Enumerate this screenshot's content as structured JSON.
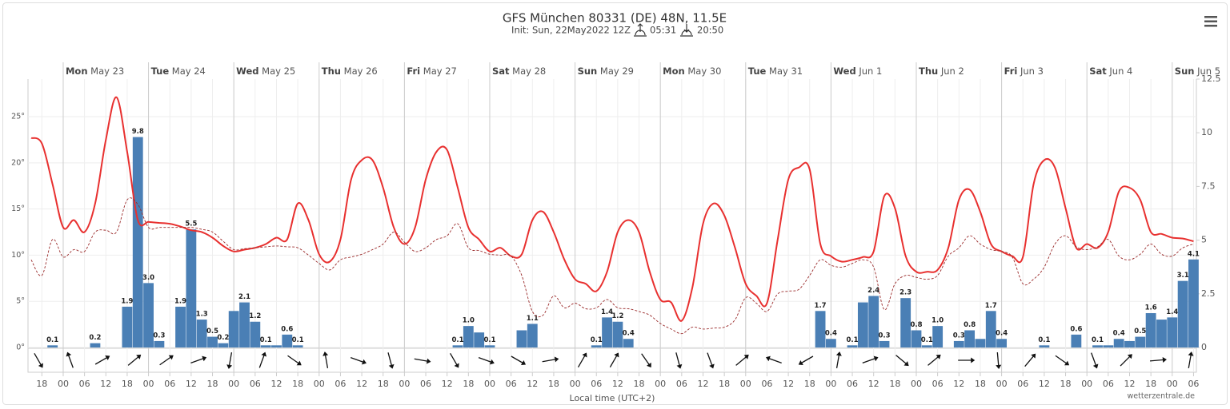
{
  "chart_data": {
    "type": "line",
    "title": "GFS München 80331 (DE) 48N, 11.5E",
    "subtitle": "Init: Sun, 22May2022 12Z",
    "sunrise": "05:31",
    "sunset": "20:50",
    "x_label": "Local time (UTC+2)",
    "credit": "wetterzentrale.de",
    "x": [
      -9,
      -6,
      -3,
      0,
      3,
      6,
      9,
      12,
      15,
      18,
      21,
      24,
      27,
      30,
      33,
      36,
      39,
      42,
      45,
      48,
      51,
      54,
      57,
      60,
      63,
      66,
      69,
      72,
      75,
      78,
      81,
      84,
      87,
      90,
      93,
      96,
      99,
      102,
      105,
      108,
      111,
      114,
      117,
      120,
      123,
      126,
      129,
      132,
      135,
      138,
      141,
      144,
      147,
      150,
      153,
      156,
      159,
      162,
      165,
      168,
      171,
      174,
      177,
      180,
      183,
      186,
      189,
      192,
      195,
      198,
      201,
      204,
      207,
      210,
      213,
      216,
      219,
      222,
      225,
      228,
      231,
      234,
      237,
      240,
      243,
      246,
      249,
      252,
      255,
      258,
      261,
      264,
      267,
      270,
      273,
      276,
      279,
      282,
      285,
      288,
      291,
      294,
      297,
      300,
      303,
      306,
      309,
      312,
      315,
      318
    ],
    "xlim": [
      -9.9,
      318.8
    ],
    "xticks": [
      {
        "value": -6,
        "label": "18"
      },
      {
        "value": 0,
        "label": "00"
      },
      {
        "value": 6,
        "label": "06"
      },
      {
        "value": 12,
        "label": "12"
      },
      {
        "value": 18,
        "label": "18"
      },
      {
        "value": 24,
        "label": "00"
      },
      {
        "value": 30,
        "label": "06"
      },
      {
        "value": 36,
        "label": "12"
      },
      {
        "value": 42,
        "label": "18"
      },
      {
        "value": 48,
        "label": "00"
      },
      {
        "value": 54,
        "label": "06"
      },
      {
        "value": 60,
        "label": "12"
      },
      {
        "value": 66,
        "label": "18"
      },
      {
        "value": 72,
        "label": "00"
      },
      {
        "value": 78,
        "label": "06"
      },
      {
        "value": 84,
        "label": "12"
      },
      {
        "value": 90,
        "label": "18"
      },
      {
        "value": 96,
        "label": "00"
      },
      {
        "value": 102,
        "label": "06"
      },
      {
        "value": 108,
        "label": "12"
      },
      {
        "value": 114,
        "label": "18"
      },
      {
        "value": 120,
        "label": "00"
      },
      {
        "value": 126,
        "label": "06"
      },
      {
        "value": 132,
        "label": "12"
      },
      {
        "value": 138,
        "label": "18"
      },
      {
        "value": 144,
        "label": "00"
      },
      {
        "value": 150,
        "label": "06"
      },
      {
        "value": 156,
        "label": "12"
      },
      {
        "value": 162,
        "label": "18"
      },
      {
        "value": 168,
        "label": "00"
      },
      {
        "value": 174,
        "label": "06"
      },
      {
        "value": 180,
        "label": "12"
      },
      {
        "value": 186,
        "label": "18"
      },
      {
        "value": 192,
        "label": "00"
      },
      {
        "value": 198,
        "label": "06"
      },
      {
        "value": 204,
        "label": "12"
      },
      {
        "value": 210,
        "label": "18"
      },
      {
        "value": 216,
        "label": "00"
      },
      {
        "value": 222,
        "label": "06"
      },
      {
        "value": 228,
        "label": "12"
      },
      {
        "value": 234,
        "label": "18"
      },
      {
        "value": 240,
        "label": "00"
      },
      {
        "value": 246,
        "label": "06"
      },
      {
        "value": 252,
        "label": "12"
      },
      {
        "value": 258,
        "label": "18"
      },
      {
        "value": 264,
        "label": "00"
      },
      {
        "value": 270,
        "label": "06"
      },
      {
        "value": 276,
        "label": "12"
      },
      {
        "value": 282,
        "label": "18"
      },
      {
        "value": 288,
        "label": "00"
      },
      {
        "value": 294,
        "label": "06"
      },
      {
        "value": 300,
        "label": "12"
      },
      {
        "value": 306,
        "label": "18"
      },
      {
        "value": 312,
        "label": "00"
      },
      {
        "value": 318,
        "label": "06"
      }
    ],
    "days": [
      {
        "value": 0,
        "weekday": "Mon",
        "date": "May 23"
      },
      {
        "value": 24,
        "weekday": "Tue",
        "date": "May 24"
      },
      {
        "value": 48,
        "weekday": "Wed",
        "date": "May 25"
      },
      {
        "value": 72,
        "weekday": "Thu",
        "date": "May 26"
      },
      {
        "value": 96,
        "weekday": "Fri",
        "date": "May 27"
      },
      {
        "value": 120,
        "weekday": "Sat",
        "date": "May 28"
      },
      {
        "value": 144,
        "weekday": "Sun",
        "date": "May 29"
      },
      {
        "value": 168,
        "weekday": "Mon",
        "date": "May 30"
      },
      {
        "value": 192,
        "weekday": "Tue",
        "date": "May 31"
      },
      {
        "value": 216,
        "weekday": "Wed",
        "date": "Jun 1"
      },
      {
        "value": 240,
        "weekday": "Thu",
        "date": "Jun 2"
      },
      {
        "value": 264,
        "weekday": "Fri",
        "date": "Jun 3"
      },
      {
        "value": 288,
        "weekday": "Sat",
        "date": "Jun 4"
      },
      {
        "value": 312,
        "weekday": "Sun",
        "date": "Jun 5"
      }
    ],
    "ylim": [
      0,
      29.07
    ],
    "yticks": [
      {
        "value": 0,
        "label": "0°"
      },
      {
        "value": 5,
        "label": "5°"
      },
      {
        "value": 10,
        "label": "10°"
      },
      {
        "value": 15,
        "label": "15°"
      },
      {
        "value": 20,
        "label": "20°"
      },
      {
        "value": 25,
        "label": "25°"
      }
    ],
    "y2lim": [
      0,
      12.5
    ],
    "y2ticks": [
      0,
      2.5,
      5,
      7.5,
      10,
      12.5
    ],
    "grid": true,
    "series": [
      {
        "type": "line",
        "color": "#e8302f",
        "dash": false,
        "values": [
          22.7,
          22.1,
          17.7,
          13.0,
          13.8,
          12.5,
          15.6,
          22.5,
          27.1,
          21.2,
          13.8,
          13.6,
          13.5,
          13.4,
          13.1,
          12.7,
          12.5,
          11.9,
          11.0,
          10.4,
          10.6,
          10.8,
          11.2,
          11.9,
          11.7,
          15.6,
          13.8,
          10.1,
          9.3,
          11.7,
          18.2,
          20.3,
          20.3,
          17.3,
          13.0,
          11.2,
          13.0,
          18.2,
          21.2,
          21.4,
          17.3,
          13.0,
          11.7,
          10.4,
          10.8,
          9.9,
          10.1,
          13.8,
          14.7,
          12.5,
          9.5,
          7.4,
          6.9,
          6.1,
          8.2,
          12.5,
          13.8,
          12.5,
          8.2,
          5.2,
          4.9,
          2.9,
          6.5,
          13.4,
          15.6,
          14.3,
          10.8,
          6.9,
          5.6,
          4.8,
          11.7,
          18.2,
          19.5,
          19.3,
          11.2,
          9.9,
          9.3,
          9.5,
          9.8,
          10.4,
          16.4,
          15.1,
          9.9,
          8.2,
          8.2,
          8.4,
          10.8,
          16.0,
          17.1,
          14.7,
          11.2,
          10.4,
          9.9,
          9.8,
          17.7,
          20.3,
          19.5,
          15.1,
          10.8,
          11.2,
          10.8,
          12.5,
          16.9,
          17.3,
          16.0,
          12.5,
          12.3,
          11.9,
          11.8,
          11.5
        ]
      },
      {
        "type": "line",
        "color": "#9a2a2a",
        "dash": true,
        "values": [
          9.5,
          7.8,
          11.7,
          9.8,
          10.6,
          10.4,
          12.5,
          12.7,
          12.5,
          16.0,
          15.5,
          13.0,
          13.0,
          13.0,
          13.0,
          13.0,
          12.8,
          12.5,
          11.5,
          10.6,
          10.7,
          10.8,
          10.9,
          11.0,
          10.9,
          10.8,
          10.0,
          9.1,
          8.4,
          9.5,
          9.8,
          10.1,
          10.6,
          11.2,
          12.5,
          11.4,
          10.4,
          10.8,
          11.7,
          12.1,
          13.4,
          10.8,
          10.5,
          10.1,
          10.0,
          9.9,
          7.8,
          3.9,
          3.5,
          5.6,
          4.3,
          4.8,
          4.2,
          4.3,
          5.2,
          4.3,
          4.2,
          3.9,
          3.5,
          2.6,
          2.0,
          1.5,
          2.2,
          2.0,
          2.1,
          2.2,
          3.0,
          5.4,
          4.8,
          3.9,
          5.8,
          6.1,
          6.3,
          7.8,
          9.5,
          8.9,
          8.7,
          9.1,
          9.5,
          8.7,
          4.1,
          6.9,
          7.8,
          7.6,
          7.4,
          7.8,
          9.9,
          10.8,
          12.1,
          11.2,
          10.6,
          10.4,
          9.8,
          6.9,
          7.4,
          8.7,
          11.2,
          12.1,
          10.9,
          10.6,
          10.9,
          11.7,
          9.9,
          9.5,
          10.1,
          11.2,
          10.1,
          9.9,
          10.8,
          11.2
        ]
      },
      {
        "type": "bar",
        "axis": "y2",
        "color": "#4a7fb5",
        "values": [
          0,
          0,
          0.1,
          0,
          0,
          0,
          0.2,
          0,
          0,
          1.9,
          9.8,
          3.0,
          0.3,
          0,
          1.9,
          5.5,
          1.3,
          0.5,
          0.2,
          1.7,
          2.1,
          1.2,
          0.1,
          0.1,
          0.6,
          0.1,
          0,
          0,
          0,
          0,
          0,
          0,
          0,
          0,
          0,
          0,
          0,
          0,
          0,
          0,
          0.1,
          1.0,
          0.7,
          0.1,
          0,
          0,
          0.8,
          1.1,
          0,
          0,
          0,
          0,
          0,
          0.1,
          1.4,
          1.2,
          0.4,
          0,
          0,
          0,
          0,
          0,
          0,
          0,
          0,
          0,
          0,
          0,
          0,
          0,
          0,
          0,
          0,
          0,
          1.7,
          0.4,
          0,
          0.1,
          2.1,
          2.4,
          0.3,
          0,
          2.3,
          0.8,
          0.1,
          1.0,
          0,
          0.3,
          0.8,
          0.4,
          1.7,
          0.4,
          0,
          0,
          0,
          0.1,
          0,
          0,
          0.6,
          0,
          0.1,
          0.1,
          0.4,
          0.3,
          0.5,
          1.6,
          1.3,
          1.4,
          3.1,
          4.1
        ],
        "value_labels": [
          null,
          null,
          "0.1",
          null,
          null,
          null,
          "0.2",
          null,
          null,
          "1.9",
          "9.8",
          "3.0",
          "0.3",
          null,
          "1.9",
          "5.5",
          "1.3",
          "0.5",
          "0.2",
          null,
          "2.1",
          "1.2",
          "0.1",
          null,
          "0.6",
          "0.1",
          null,
          null,
          null,
          null,
          null,
          null,
          null,
          null,
          null,
          null,
          null,
          null,
          null,
          null,
          "0.1",
          "1.0",
          null,
          "0.1",
          null,
          null,
          null,
          "1.1",
          null,
          null,
          null,
          null,
          null,
          "0.1",
          "1.4",
          "1.2",
          "0.4",
          null,
          null,
          null,
          null,
          null,
          null,
          null,
          null,
          null,
          null,
          null,
          null,
          null,
          null,
          null,
          null,
          null,
          "1.7",
          "0.4",
          null,
          "0.1",
          null,
          "2.4",
          "0.3",
          null,
          "2.3",
          "0.8",
          "0.1",
          "1.0",
          null,
          "0.3",
          "0.8",
          null,
          "1.7",
          "0.4",
          null,
          null,
          null,
          "0.1",
          null,
          null,
          "0.6",
          null,
          "0.1",
          null,
          "0.4",
          null,
          "0.5",
          "1.6",
          null,
          "1.4",
          "3.1",
          "4.1"
        ]
      }
    ],
    "wind": {
      "x": [
        -7,
        2,
        11,
        20,
        29,
        38,
        47,
        56,
        65,
        74,
        83,
        92,
        101,
        110,
        119,
        128,
        137,
        146,
        155,
        164,
        173,
        182,
        191,
        200,
        209,
        218,
        227,
        236,
        245,
        254,
        263,
        272,
        281,
        290,
        299,
        308,
        317
      ],
      "directions": [
        150,
        340,
        60,
        50,
        55,
        70,
        190,
        20,
        125,
        350,
        110,
        165,
        100,
        150,
        110,
        120,
        80,
        30,
        30,
        145,
        165,
        160,
        50,
        290,
        240,
        10,
        70,
        130,
        50,
        90,
        175,
        40,
        125,
        160,
        45,
        85,
        10
      ]
    }
  }
}
